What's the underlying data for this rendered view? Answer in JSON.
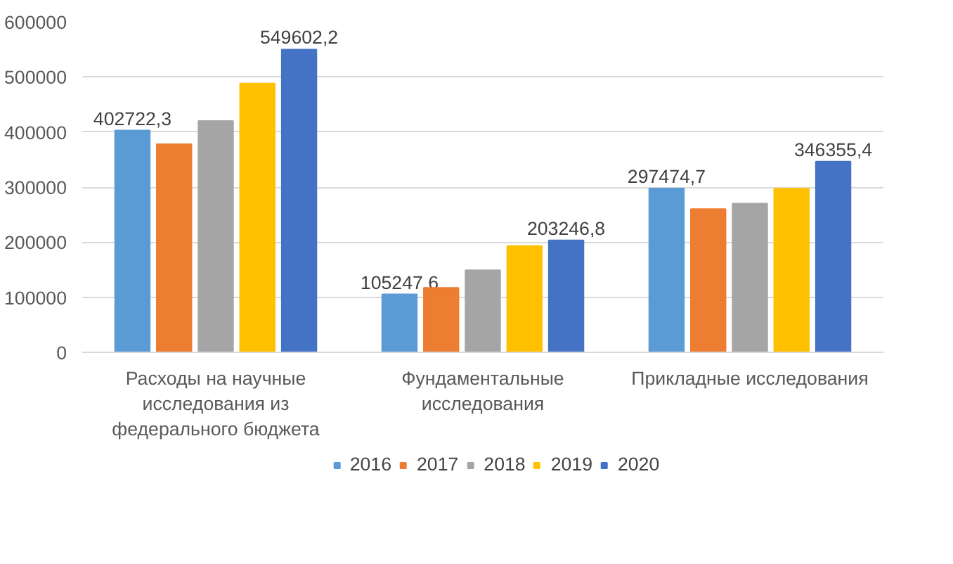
{
  "chart_data": {
    "type": "bar",
    "categories": [
      "Расходы на научные исследования из федерального бюджета",
      "Фундаментальные исследования",
      "Прикладные исследования"
    ],
    "series": [
      {
        "name": "2016",
        "color": "#5b9bd5",
        "values": [
          402722.3,
          105247.6,
          297474.7
        ],
        "value_labels": [
          "402722,3",
          "105247,6",
          "297474,7"
        ]
      },
      {
        "name": "2017",
        "color": "#ed7d31",
        "values": [
          378000,
          117000,
          260000
        ],
        "value_labels": [
          null,
          null,
          null
        ]
      },
      {
        "name": "2018",
        "color": "#a5a5a5",
        "values": [
          420000,
          149000,
          270000
        ],
        "value_labels": [
          null,
          null,
          null
        ]
      },
      {
        "name": "2019",
        "color": "#ffc000",
        "values": [
          488000,
          193000,
          297000
        ],
        "value_labels": [
          null,
          null,
          null
        ]
      },
      {
        "name": "2020",
        "color": "#4472c4",
        "values": [
          549602.2,
          203246.8,
          346355.4
        ],
        "value_labels": [
          "549602,2",
          "203246,8",
          "346355,4"
        ]
      }
    ],
    "ylim": [
      0,
      600000
    ],
    "yticks": [
      0,
      100000,
      200000,
      300000,
      400000,
      500000,
      600000
    ],
    "grid": "y",
    "legend": "bottom"
  }
}
